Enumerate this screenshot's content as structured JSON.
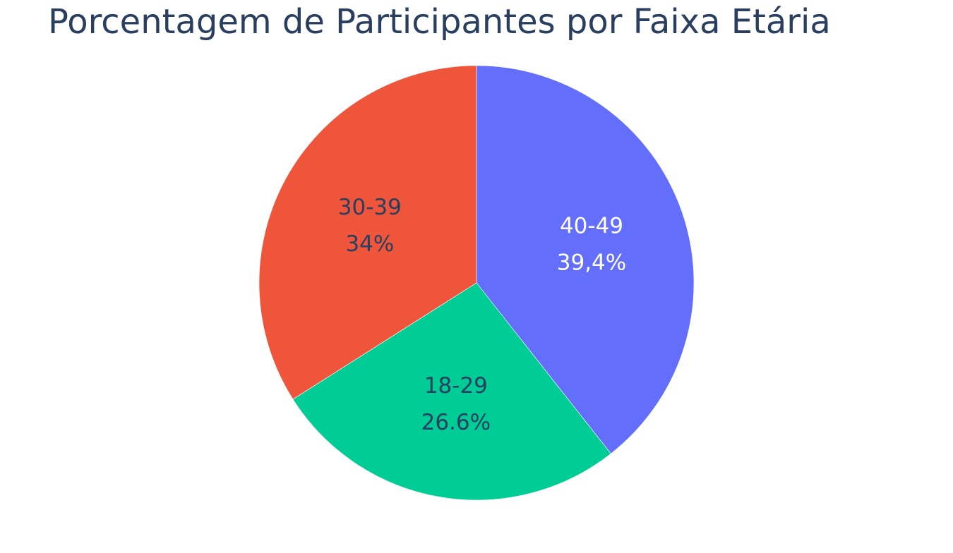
{
  "chart_data": {
    "type": "pie",
    "title": "Porcentagem de Participantes por Faixa Etária",
    "slices": [
      {
        "category": "40-49",
        "percent_label": "39,4%",
        "value": 39.4,
        "color": "#636efa",
        "label_color": "#ffffff"
      },
      {
        "category": "18-29",
        "percent_label": "26.6%",
        "value": 26.6,
        "color": "#00cc96",
        "label_color": "#2a3f5f"
      },
      {
        "category": "30-39",
        "percent_label": "34%",
        "value": 34.0,
        "color": "#ef553b",
        "label_color": "#2a3f5f"
      }
    ],
    "direction": "clockwise",
    "start": "top",
    "legend": "none"
  }
}
